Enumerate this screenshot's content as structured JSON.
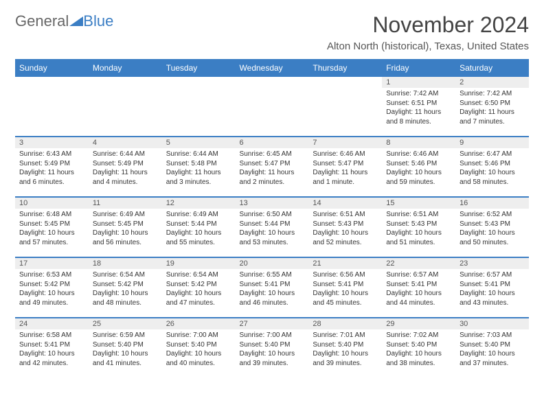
{
  "logo": {
    "word1": "General",
    "word2": "Blue"
  },
  "title": "November 2024",
  "location": "Alton North (historical), Texas, United States",
  "colors": {
    "header_bg": "#3b7ec4",
    "border": "#3b7ec4",
    "day_num_bg": "#eeeeee"
  },
  "weekdays": [
    "Sunday",
    "Monday",
    "Tuesday",
    "Wednesday",
    "Thursday",
    "Friday",
    "Saturday"
  ],
  "weeks": [
    [
      null,
      null,
      null,
      null,
      null,
      {
        "n": "1",
        "sunrise": "Sunrise: 7:42 AM",
        "sunset": "Sunset: 6:51 PM",
        "day1": "Daylight: 11 hours",
        "day2": "and 8 minutes."
      },
      {
        "n": "2",
        "sunrise": "Sunrise: 7:42 AM",
        "sunset": "Sunset: 6:50 PM",
        "day1": "Daylight: 11 hours",
        "day2": "and 7 minutes."
      }
    ],
    [
      {
        "n": "3",
        "sunrise": "Sunrise: 6:43 AM",
        "sunset": "Sunset: 5:49 PM",
        "day1": "Daylight: 11 hours",
        "day2": "and 6 minutes."
      },
      {
        "n": "4",
        "sunrise": "Sunrise: 6:44 AM",
        "sunset": "Sunset: 5:49 PM",
        "day1": "Daylight: 11 hours",
        "day2": "and 4 minutes."
      },
      {
        "n": "5",
        "sunrise": "Sunrise: 6:44 AM",
        "sunset": "Sunset: 5:48 PM",
        "day1": "Daylight: 11 hours",
        "day2": "and 3 minutes."
      },
      {
        "n": "6",
        "sunrise": "Sunrise: 6:45 AM",
        "sunset": "Sunset: 5:47 PM",
        "day1": "Daylight: 11 hours",
        "day2": "and 2 minutes."
      },
      {
        "n": "7",
        "sunrise": "Sunrise: 6:46 AM",
        "sunset": "Sunset: 5:47 PM",
        "day1": "Daylight: 11 hours",
        "day2": "and 1 minute."
      },
      {
        "n": "8",
        "sunrise": "Sunrise: 6:46 AM",
        "sunset": "Sunset: 5:46 PM",
        "day1": "Daylight: 10 hours",
        "day2": "and 59 minutes."
      },
      {
        "n": "9",
        "sunrise": "Sunrise: 6:47 AM",
        "sunset": "Sunset: 5:46 PM",
        "day1": "Daylight: 10 hours",
        "day2": "and 58 minutes."
      }
    ],
    [
      {
        "n": "10",
        "sunrise": "Sunrise: 6:48 AM",
        "sunset": "Sunset: 5:45 PM",
        "day1": "Daylight: 10 hours",
        "day2": "and 57 minutes."
      },
      {
        "n": "11",
        "sunrise": "Sunrise: 6:49 AM",
        "sunset": "Sunset: 5:45 PM",
        "day1": "Daylight: 10 hours",
        "day2": "and 56 minutes."
      },
      {
        "n": "12",
        "sunrise": "Sunrise: 6:49 AM",
        "sunset": "Sunset: 5:44 PM",
        "day1": "Daylight: 10 hours",
        "day2": "and 55 minutes."
      },
      {
        "n": "13",
        "sunrise": "Sunrise: 6:50 AM",
        "sunset": "Sunset: 5:44 PM",
        "day1": "Daylight: 10 hours",
        "day2": "and 53 minutes."
      },
      {
        "n": "14",
        "sunrise": "Sunrise: 6:51 AM",
        "sunset": "Sunset: 5:43 PM",
        "day1": "Daylight: 10 hours",
        "day2": "and 52 minutes."
      },
      {
        "n": "15",
        "sunrise": "Sunrise: 6:51 AM",
        "sunset": "Sunset: 5:43 PM",
        "day1": "Daylight: 10 hours",
        "day2": "and 51 minutes."
      },
      {
        "n": "16",
        "sunrise": "Sunrise: 6:52 AM",
        "sunset": "Sunset: 5:43 PM",
        "day1": "Daylight: 10 hours",
        "day2": "and 50 minutes."
      }
    ],
    [
      {
        "n": "17",
        "sunrise": "Sunrise: 6:53 AM",
        "sunset": "Sunset: 5:42 PM",
        "day1": "Daylight: 10 hours",
        "day2": "and 49 minutes."
      },
      {
        "n": "18",
        "sunrise": "Sunrise: 6:54 AM",
        "sunset": "Sunset: 5:42 PM",
        "day1": "Daylight: 10 hours",
        "day2": "and 48 minutes."
      },
      {
        "n": "19",
        "sunrise": "Sunrise: 6:54 AM",
        "sunset": "Sunset: 5:42 PM",
        "day1": "Daylight: 10 hours",
        "day2": "and 47 minutes."
      },
      {
        "n": "20",
        "sunrise": "Sunrise: 6:55 AM",
        "sunset": "Sunset: 5:41 PM",
        "day1": "Daylight: 10 hours",
        "day2": "and 46 minutes."
      },
      {
        "n": "21",
        "sunrise": "Sunrise: 6:56 AM",
        "sunset": "Sunset: 5:41 PM",
        "day1": "Daylight: 10 hours",
        "day2": "and 45 minutes."
      },
      {
        "n": "22",
        "sunrise": "Sunrise: 6:57 AM",
        "sunset": "Sunset: 5:41 PM",
        "day1": "Daylight: 10 hours",
        "day2": "and 44 minutes."
      },
      {
        "n": "23",
        "sunrise": "Sunrise: 6:57 AM",
        "sunset": "Sunset: 5:41 PM",
        "day1": "Daylight: 10 hours",
        "day2": "and 43 minutes."
      }
    ],
    [
      {
        "n": "24",
        "sunrise": "Sunrise: 6:58 AM",
        "sunset": "Sunset: 5:41 PM",
        "day1": "Daylight: 10 hours",
        "day2": "and 42 minutes."
      },
      {
        "n": "25",
        "sunrise": "Sunrise: 6:59 AM",
        "sunset": "Sunset: 5:40 PM",
        "day1": "Daylight: 10 hours",
        "day2": "and 41 minutes."
      },
      {
        "n": "26",
        "sunrise": "Sunrise: 7:00 AM",
        "sunset": "Sunset: 5:40 PM",
        "day1": "Daylight: 10 hours",
        "day2": "and 40 minutes."
      },
      {
        "n": "27",
        "sunrise": "Sunrise: 7:00 AM",
        "sunset": "Sunset: 5:40 PM",
        "day1": "Daylight: 10 hours",
        "day2": "and 39 minutes."
      },
      {
        "n": "28",
        "sunrise": "Sunrise: 7:01 AM",
        "sunset": "Sunset: 5:40 PM",
        "day1": "Daylight: 10 hours",
        "day2": "and 39 minutes."
      },
      {
        "n": "29",
        "sunrise": "Sunrise: 7:02 AM",
        "sunset": "Sunset: 5:40 PM",
        "day1": "Daylight: 10 hours",
        "day2": "and 38 minutes."
      },
      {
        "n": "30",
        "sunrise": "Sunrise: 7:03 AM",
        "sunset": "Sunset: 5:40 PM",
        "day1": "Daylight: 10 hours",
        "day2": "and 37 minutes."
      }
    ]
  ]
}
